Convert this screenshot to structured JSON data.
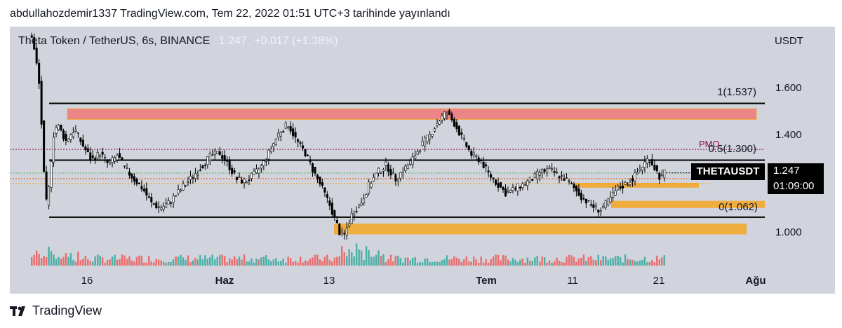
{
  "caption": "abdullahozdemir1337 TradingView.com, Tem 22, 2022 01:51 UTC+3 tarihinde yayınlandı",
  "legend": {
    "symbol": "Theta Token / TetherUS, 6s, BINANCE",
    "last": "1.247",
    "change": "+0.017 (+1.38%)"
  },
  "price_axis": {
    "currency": "USDT",
    "ticks": [
      "1.600",
      "1.400",
      "1.000"
    ]
  },
  "time_axis": {
    "ticks": [
      {
        "label": "16",
        "bold": false
      },
      {
        "label": "Haz",
        "bold": true
      },
      {
        "label": "13",
        "bold": false
      },
      {
        "label": "Tem",
        "bold": true
      },
      {
        "label": "11",
        "bold": false
      },
      {
        "label": "21",
        "bold": false
      },
      {
        "label": "Ağu",
        "bold": true
      }
    ]
  },
  "levels": {
    "top": "1(1.537)",
    "mid": "0.5(1.300)",
    "bottom": "0(1.062)",
    "pmo": "PMO"
  },
  "price_tag": {
    "symbol": "THETAUSDT",
    "price": "1.247",
    "countdown": "01:09:00"
  },
  "footer": {
    "brand": "TradingView"
  },
  "colors": {
    "background": "#d1d4dc",
    "up_candle": "#ffffff",
    "down_candle": "#000000",
    "supply_zone": "#f0787a",
    "demand_zone": "#f5a623",
    "pmo_line": "#880e4f",
    "volume_up": "#26a69a",
    "volume_down": "#ef5350"
  },
  "chart_data": {
    "type": "candlestick",
    "symbol": "THETAUSDT",
    "timeframe": "6s",
    "exchange": "BINANCE",
    "y_range": [
      0.85,
      1.82
    ],
    "last_price": 1.247,
    "change": 0.017,
    "change_percent": 1.38,
    "fib_levels": [
      {
        "label": "1",
        "value": 1.537
      },
      {
        "label": "0.5",
        "value": 1.3
      },
      {
        "label": "0",
        "value": 1.062
      }
    ],
    "pmo_level": 1.345,
    "zones": [
      {
        "kind": "supply",
        "from": 1.47,
        "to": 1.515
      },
      {
        "kind": "demand",
        "from": 1.185,
        "to": 1.205
      },
      {
        "kind": "demand",
        "from": 1.1,
        "to": 1.13
      },
      {
        "kind": "demand",
        "from": 0.99,
        "to": 1.035
      }
    ],
    "close_path": [
      [
        0,
        1.82
      ],
      [
        8,
        1.65
      ],
      [
        12,
        1.42
      ],
      [
        16,
        1.1
      ],
      [
        20,
        1.18
      ],
      [
        25,
        1.4
      ],
      [
        30,
        1.45
      ],
      [
        40,
        1.38
      ],
      [
        50,
        1.43
      ],
      [
        60,
        1.36
      ],
      [
        70,
        1.3
      ],
      [
        80,
        1.33
      ],
      [
        90,
        1.28
      ],
      [
        100,
        1.32
      ],
      [
        110,
        1.26
      ],
      [
        120,
        1.22
      ],
      [
        130,
        1.18
      ],
      [
        140,
        1.12
      ],
      [
        150,
        1.1
      ],
      [
        160,
        1.12
      ],
      [
        170,
        1.16
      ],
      [
        180,
        1.2
      ],
      [
        190,
        1.24
      ],
      [
        200,
        1.28
      ],
      [
        210,
        1.32
      ],
      [
        220,
        1.33
      ],
      [
        230,
        1.28
      ],
      [
        240,
        1.22
      ],
      [
        250,
        1.21
      ],
      [
        260,
        1.24
      ],
      [
        270,
        1.28
      ],
      [
        280,
        1.35
      ],
      [
        290,
        1.42
      ],
      [
        300,
        1.45
      ],
      [
        310,
        1.38
      ],
      [
        320,
        1.33
      ],
      [
        330,
        1.25
      ],
      [
        340,
        1.18
      ],
      [
        350,
        1.1
      ],
      [
        360,
        1.0
      ],
      [
        365,
        0.98
      ],
      [
        375,
        1.08
      ],
      [
        385,
        1.12
      ],
      [
        395,
        1.2
      ],
      [
        405,
        1.25
      ],
      [
        415,
        1.28
      ],
      [
        425,
        1.22
      ],
      [
        435,
        1.26
      ],
      [
        445,
        1.3
      ],
      [
        455,
        1.36
      ],
      [
        465,
        1.4
      ],
      [
        475,
        1.46
      ],
      [
        480,
        1.48
      ],
      [
        485,
        1.5
      ],
      [
        495,
        1.45
      ],
      [
        505,
        1.38
      ],
      [
        515,
        1.32
      ],
      [
        525,
        1.3
      ],
      [
        535,
        1.24
      ],
      [
        545,
        1.2
      ],
      [
        555,
        1.16
      ],
      [
        565,
        1.18
      ],
      [
        575,
        1.2
      ],
      [
        585,
        1.22
      ],
      [
        595,
        1.25
      ],
      [
        605,
        1.26
      ],
      [
        615,
        1.24
      ],
      [
        625,
        1.22
      ],
      [
        635,
        1.18
      ],
      [
        645,
        1.14
      ],
      [
        655,
        1.11
      ],
      [
        665,
        1.09
      ],
      [
        675,
        1.13
      ],
      [
        685,
        1.18
      ],
      [
        695,
        1.2
      ],
      [
        705,
        1.23
      ],
      [
        715,
        1.28
      ],
      [
        722,
        1.31
      ],
      [
        730,
        1.26
      ],
      [
        736,
        1.22
      ],
      [
        740,
        1.247
      ]
    ],
    "volume": {
      "note": "volume histogram under price, green = up bar, red = down bar",
      "peak_region": "near 13 Haz"
    }
  }
}
